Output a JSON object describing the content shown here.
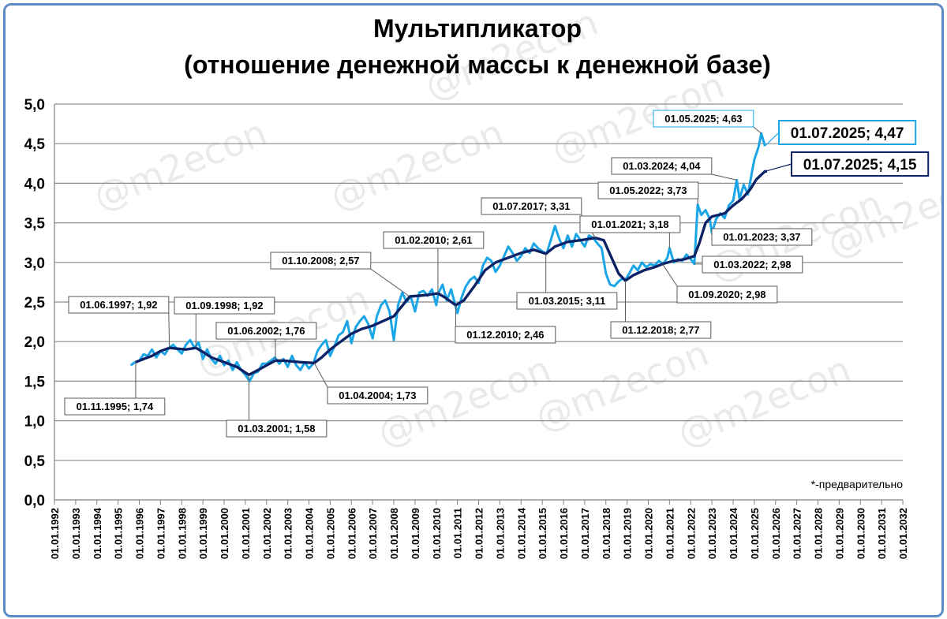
{
  "chart_data": {
    "type": "line",
    "title_line1": "Мультипликатор",
    "title_line2": "(отношение денежной массы к денежной базе)",
    "footnote": "*-предварительно",
    "watermark": "@m2econ",
    "ylim": [
      0,
      5
    ],
    "yticks": [
      "0,0",
      "0,5",
      "1,0",
      "1,5",
      "2,0",
      "2,5",
      "3,0",
      "3,5",
      "4,0",
      "4,5",
      "5,0"
    ],
    "xticks": [
      "01.01.1992",
      "01.01.1993",
      "01.01.1994",
      "01.01.1995",
      "01.01.1996",
      "01.01.1997",
      "01.01.1998",
      "01.01.1999",
      "01.01.2000",
      "01.01.2001",
      "01.01.2002",
      "01.01.2003",
      "01.01.2004",
      "01.01.2005",
      "01.01.2006",
      "01.01.2007",
      "01.01.2008",
      "01.01.2009",
      "01.01.2010",
      "01.01.2011",
      "01.01.2012",
      "01.01.2013",
      "01.01.2014",
      "01.01.2015",
      "01.01.2016",
      "01.01.2017",
      "01.01.2018",
      "01.01.2019",
      "01.01.2020",
      "01.01.2021",
      "01.01.2022",
      "01.01.2023",
      "01.01.2024",
      "01.01.2025",
      "01.01.2026",
      "01.01.2027",
      "01.01.2028",
      "01.01.2029",
      "01.01.2030",
      "01.01.2031",
      "01.01.2032"
    ],
    "grid": true,
    "colors": {
      "monthly": "#1aa5e6",
      "smoothed": "#0c2266",
      "frame": "#5b8cc8"
    },
    "series": [
      {
        "key": "monthly",
        "points": [
          [
            1995.6,
            1.7
          ],
          [
            1995.8,
            1.74
          ],
          [
            1996.0,
            1.76
          ],
          [
            1996.2,
            1.84
          ],
          [
            1996.4,
            1.82
          ],
          [
            1996.6,
            1.9
          ],
          [
            1996.8,
            1.8
          ],
          [
            1997.0,
            1.88
          ],
          [
            1997.2,
            1.84
          ],
          [
            1997.4,
            1.92
          ],
          [
            1997.6,
            1.96
          ],
          [
            1997.8,
            1.9
          ],
          [
            1998.0,
            1.85
          ],
          [
            1998.2,
            1.96
          ],
          [
            1998.4,
            2.02
          ],
          [
            1998.6,
            1.92
          ],
          [
            1998.8,
            1.99
          ],
          [
            1999.0,
            1.78
          ],
          [
            1999.2,
            1.9
          ],
          [
            1999.4,
            1.78
          ],
          [
            1999.6,
            1.72
          ],
          [
            1999.8,
            1.82
          ],
          [
            2000.0,
            1.7
          ],
          [
            2000.2,
            1.76
          ],
          [
            2000.4,
            1.64
          ],
          [
            2000.6,
            1.74
          ],
          [
            2000.8,
            1.64
          ],
          [
            2001.0,
            1.58
          ],
          [
            2001.2,
            1.5
          ],
          [
            2001.4,
            1.6
          ],
          [
            2001.6,
            1.62
          ],
          [
            2001.8,
            1.72
          ],
          [
            2002.0,
            1.72
          ],
          [
            2002.2,
            1.76
          ],
          [
            2002.4,
            1.8
          ],
          [
            2002.6,
            1.72
          ],
          [
            2002.8,
            1.78
          ],
          [
            2003.0,
            1.68
          ],
          [
            2003.2,
            1.82
          ],
          [
            2003.4,
            1.7
          ],
          [
            2003.6,
            1.64
          ],
          [
            2003.8,
            1.74
          ],
          [
            2004.0,
            1.66
          ],
          [
            2004.2,
            1.72
          ],
          [
            2004.4,
            1.88
          ],
          [
            2004.6,
            1.96
          ],
          [
            2004.8,
            2.02
          ],
          [
            2005.0,
            1.82
          ],
          [
            2005.2,
            1.94
          ],
          [
            2005.4,
            2.08
          ],
          [
            2005.6,
            2.12
          ],
          [
            2005.8,
            2.26
          ],
          [
            2006.0,
            1.98
          ],
          [
            2006.2,
            2.18
          ],
          [
            2006.4,
            2.26
          ],
          [
            2006.6,
            2.32
          ],
          [
            2006.8,
            2.22
          ],
          [
            2007.0,
            2.04
          ],
          [
            2007.2,
            2.32
          ],
          [
            2007.4,
            2.46
          ],
          [
            2007.6,
            2.52
          ],
          [
            2007.8,
            2.38
          ],
          [
            2008.0,
            2.02
          ],
          [
            2008.2,
            2.46
          ],
          [
            2008.4,
            2.62
          ],
          [
            2008.6,
            2.5
          ],
          [
            2008.8,
            2.57
          ],
          [
            2009.0,
            2.38
          ],
          [
            2009.2,
            2.62
          ],
          [
            2009.4,
            2.64
          ],
          [
            2009.6,
            2.58
          ],
          [
            2009.8,
            2.66
          ],
          [
            2010.0,
            2.46
          ],
          [
            2010.1,
            2.61
          ],
          [
            2010.3,
            2.72
          ],
          [
            2010.5,
            2.52
          ],
          [
            2010.7,
            2.66
          ],
          [
            2010.9,
            2.46
          ],
          [
            2011.0,
            2.36
          ],
          [
            2011.2,
            2.56
          ],
          [
            2011.4,
            2.7
          ],
          [
            2011.6,
            2.78
          ],
          [
            2011.8,
            2.82
          ],
          [
            2012.0,
            2.74
          ],
          [
            2012.2,
            2.96
          ],
          [
            2012.4,
            3.06
          ],
          [
            2012.6,
            3.02
          ],
          [
            2012.8,
            2.88
          ],
          [
            2013.0,
            2.96
          ],
          [
            2013.2,
            3.08
          ],
          [
            2013.4,
            3.2
          ],
          [
            2013.6,
            3.12
          ],
          [
            2013.8,
            3.02
          ],
          [
            2014.0,
            3.08
          ],
          [
            2014.2,
            3.18
          ],
          [
            2014.4,
            3.12
          ],
          [
            2014.6,
            3.24
          ],
          [
            2014.8,
            3.18
          ],
          [
            2015.0,
            3.14
          ],
          [
            2015.2,
            3.11
          ],
          [
            2015.4,
            3.28
          ],
          [
            2015.6,
            3.46
          ],
          [
            2015.8,
            3.3
          ],
          [
            2016.0,
            3.18
          ],
          [
            2016.2,
            3.34
          ],
          [
            2016.4,
            3.2
          ],
          [
            2016.6,
            3.36
          ],
          [
            2016.8,
            3.28
          ],
          [
            2017.0,
            3.2
          ],
          [
            2017.2,
            3.34
          ],
          [
            2017.4,
            3.31
          ],
          [
            2017.6,
            3.24
          ],
          [
            2017.8,
            3.18
          ],
          [
            2018.0,
            2.86
          ],
          [
            2018.2,
            2.72
          ],
          [
            2018.4,
            2.7
          ],
          [
            2018.6,
            2.76
          ],
          [
            2018.8,
            2.8
          ],
          [
            2018.9,
            2.77
          ],
          [
            2019.1,
            2.86
          ],
          [
            2019.3,
            2.96
          ],
          [
            2019.5,
            2.9
          ],
          [
            2019.7,
            3.0
          ],
          [
            2019.9,
            2.94
          ],
          [
            2020.1,
            2.98
          ],
          [
            2020.3,
            2.96
          ],
          [
            2020.5,
            3.02
          ],
          [
            2020.7,
            2.98
          ],
          [
            2020.9,
            3.06
          ],
          [
            2021.0,
            3.18
          ],
          [
            2021.2,
            3.0
          ],
          [
            2021.4,
            3.04
          ],
          [
            2021.6,
            3.02
          ],
          [
            2021.8,
            3.1
          ],
          [
            2022.0,
            3.04
          ],
          [
            2022.17,
            2.98
          ],
          [
            2022.33,
            3.73
          ],
          [
            2022.5,
            3.6
          ],
          [
            2022.7,
            3.66
          ],
          [
            2022.9,
            3.55
          ],
          [
            2023.0,
            3.37
          ],
          [
            2023.2,
            3.55
          ],
          [
            2023.4,
            3.62
          ],
          [
            2023.6,
            3.56
          ],
          [
            2023.8,
            3.72
          ],
          [
            2024.0,
            3.78
          ],
          [
            2024.17,
            4.04
          ],
          [
            2024.3,
            3.8
          ],
          [
            2024.5,
            3.98
          ],
          [
            2024.7,
            3.86
          ],
          [
            2024.9,
            4.16
          ],
          [
            2025.0,
            4.3
          ],
          [
            2025.2,
            4.46
          ],
          [
            2025.33,
            4.63
          ],
          [
            2025.5,
            4.47
          ]
        ]
      },
      {
        "key": "smoothed",
        "points": [
          [
            1995.83,
            1.74
          ],
          [
            1996.2,
            1.78
          ],
          [
            1996.6,
            1.82
          ],
          [
            1997.0,
            1.88
          ],
          [
            1997.42,
            1.92
          ],
          [
            1997.8,
            1.91
          ],
          [
            1998.2,
            1.9
          ],
          [
            1998.67,
            1.92
          ],
          [
            1999.0,
            1.87
          ],
          [
            1999.4,
            1.8
          ],
          [
            1999.8,
            1.76
          ],
          [
            2000.2,
            1.72
          ],
          [
            2000.6,
            1.68
          ],
          [
            2001.17,
            1.58
          ],
          [
            2001.6,
            1.64
          ],
          [
            2002.0,
            1.7
          ],
          [
            2002.42,
            1.76
          ],
          [
            2002.8,
            1.76
          ],
          [
            2003.2,
            1.75
          ],
          [
            2003.6,
            1.74
          ],
          [
            2004.25,
            1.73
          ],
          [
            2004.6,
            1.8
          ],
          [
            2005.0,
            1.9
          ],
          [
            2005.5,
            2.0
          ],
          [
            2006.0,
            2.1
          ],
          [
            2006.5,
            2.16
          ],
          [
            2007.0,
            2.2
          ],
          [
            2007.5,
            2.26
          ],
          [
            2008.0,
            2.32
          ],
          [
            2008.75,
            2.57
          ],
          [
            2009.2,
            2.58
          ],
          [
            2009.6,
            2.59
          ],
          [
            2010.08,
            2.61
          ],
          [
            2010.4,
            2.56
          ],
          [
            2010.92,
            2.46
          ],
          [
            2011.3,
            2.52
          ],
          [
            2011.8,
            2.7
          ],
          [
            2012.3,
            2.9
          ],
          [
            2012.8,
            3.0
          ],
          [
            2013.4,
            3.06
          ],
          [
            2014.0,
            3.12
          ],
          [
            2014.6,
            3.16
          ],
          [
            2015.17,
            3.11
          ],
          [
            2015.6,
            3.2
          ],
          [
            2016.2,
            3.26
          ],
          [
            2016.8,
            3.28
          ],
          [
            2017.5,
            3.31
          ],
          [
            2017.9,
            3.28
          ],
          [
            2018.3,
            3.04
          ],
          [
            2018.6,
            2.86
          ],
          [
            2018.92,
            2.77
          ],
          [
            2019.3,
            2.84
          ],
          [
            2019.8,
            2.9
          ],
          [
            2020.3,
            2.94
          ],
          [
            2020.67,
            2.98
          ],
          [
            2021.2,
            3.02
          ],
          [
            2021.7,
            3.04
          ],
          [
            2022.17,
            3.08
          ],
          [
            2022.4,
            3.24
          ],
          [
            2022.7,
            3.5
          ],
          [
            2023.0,
            3.58
          ],
          [
            2023.3,
            3.6
          ],
          [
            2023.6,
            3.62
          ],
          [
            2024.0,
            3.72
          ],
          [
            2024.4,
            3.8
          ],
          [
            2024.8,
            3.92
          ],
          [
            2025.1,
            4.05
          ],
          [
            2025.5,
            4.15
          ],
          [
            2025.6,
            4.15
          ]
        ]
      }
    ],
    "annotations": [
      {
        "label": "01.11.1995; 1,74",
        "x": 1995.83,
        "y": 1.74
      },
      {
        "label": "01.06.1997; 1,92",
        "x": 1997.42,
        "y": 1.92
      },
      {
        "label": "01.09.1998; 1,92",
        "x": 1998.67,
        "y": 1.92
      },
      {
        "label": "01.03.2001; 1,58",
        "x": 2001.17,
        "y": 1.58
      },
      {
        "label": "01.06.2002; 1,76",
        "x": 2002.42,
        "y": 1.76
      },
      {
        "label": "01.04.2004; 1,73",
        "x": 2004.25,
        "y": 1.73
      },
      {
        "label": "01.10.2008; 2,57",
        "x": 2008.75,
        "y": 2.57
      },
      {
        "label": "01.02.2010; 2,61",
        "x": 2010.08,
        "y": 2.61
      },
      {
        "label": "01.12.2010; 2,46",
        "x": 2010.92,
        "y": 2.46
      },
      {
        "label": "01.07.2017; 3,31",
        "x": 2017.5,
        "y": 3.31
      },
      {
        "label": "01.03.2015; 3,11",
        "x": 2015.17,
        "y": 3.11
      },
      {
        "label": "01.12.2018; 2,77",
        "x": 2018.92,
        "y": 2.77
      },
      {
        "label": "01.01.2021; 3,18",
        "x": 2021.0,
        "y": 3.18
      },
      {
        "label": "01.09.2020; 2,98",
        "x": 2020.67,
        "y": 2.98
      },
      {
        "label": "01.03.2022; 2,98",
        "x": 2022.17,
        "y": 2.98
      },
      {
        "label": "01.05.2022; 3,73",
        "x": 2022.33,
        "y": 3.73
      },
      {
        "label": "01.01.2023; 3,37",
        "x": 2023.0,
        "y": 3.37
      },
      {
        "label": "01.03.2024; 4,04",
        "x": 2024.17,
        "y": 4.04
      },
      {
        "label": "01.05.2025; 4,63",
        "x": 2025.33,
        "y": 4.63
      },
      {
        "label": "01.07.2025; 4,47",
        "x": 2025.5,
        "y": 4.47
      },
      {
        "label": "01.07.2025; 4,15",
        "x": 2025.5,
        "y": 4.15
      }
    ]
  }
}
